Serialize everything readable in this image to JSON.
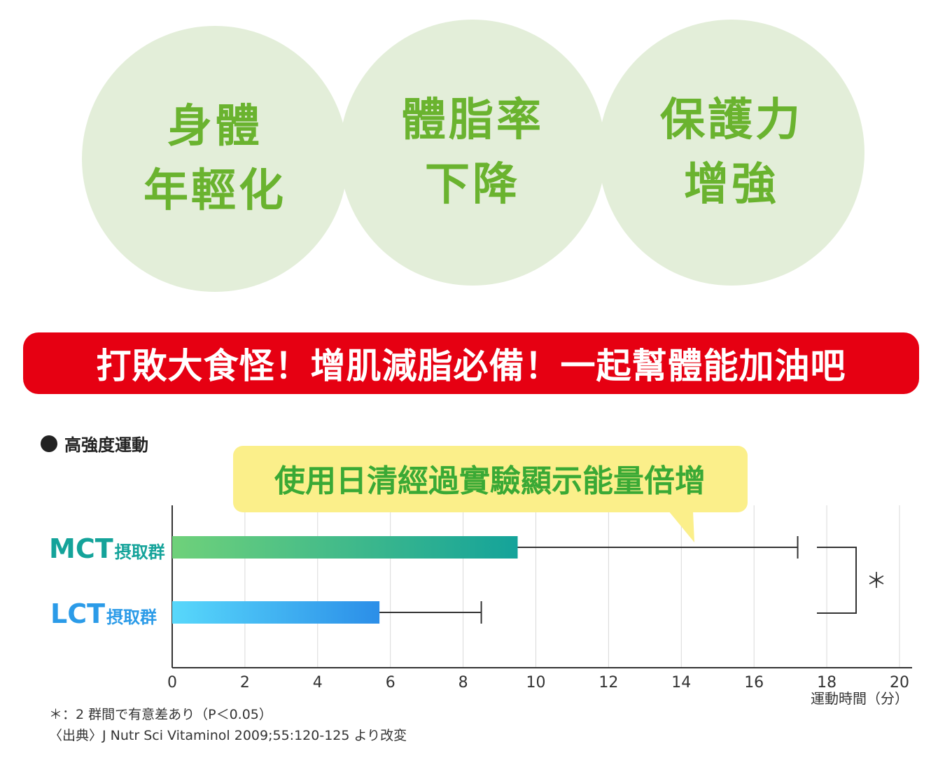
{
  "circles": [
    {
      "line1": "身體",
      "line2": "年輕化"
    },
    {
      "line1": "體脂率",
      "line2": "下降"
    },
    {
      "line1": "保護力",
      "line2": "增強"
    }
  ],
  "banner": "打敗大食怪！增肌減脂必備！一起幫體能加油吧",
  "colors": {
    "circle_bg": "#e3eed9",
    "circle_text": "#6ab32f",
    "banner_bg": "#e60012",
    "callout_bg": "#fbef8a",
    "callout_text": "#3aa935",
    "mct": "#14a39a",
    "lct": "#2b9be8"
  },
  "chart_data": {
    "type": "bar",
    "orientation": "horizontal",
    "legend_label": "高強度運動",
    "callout": "使用日清經過實驗顯示能量倍增",
    "categories": [
      {
        "name": "MCT",
        "suffix": "摂取群"
      },
      {
        "name": "LCT",
        "suffix": "摂取群"
      }
    ],
    "values": [
      9.5,
      5.7
    ],
    "error_upper": [
      17.2,
      8.5
    ],
    "xlim": [
      0,
      20
    ],
    "xticks": [
      "0",
      "2",
      "4",
      "6",
      "8",
      "10",
      "12",
      "14",
      "16",
      "18",
      "20"
    ],
    "xlabel": "運動時間（分）",
    "grid": true,
    "significance_mark": "＊"
  },
  "notes": {
    "significance": "＊：2 群間で有意差あり（P＜0.05）",
    "source": "〈出典〉J Nutr Sci Vitaminol 2009;55:120-125 より改変"
  }
}
